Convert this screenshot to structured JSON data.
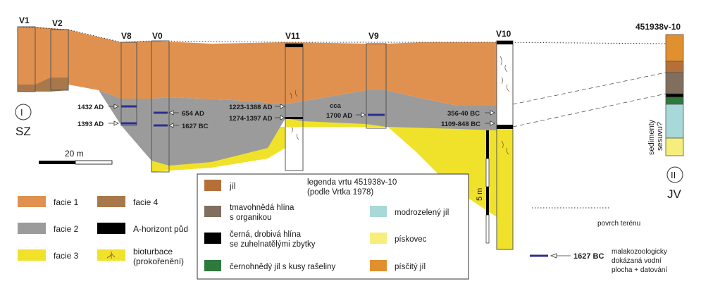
{
  "colors": {
    "facie1": "#e0914f",
    "facie2": "#9b9b9b",
    "facie3": "#f0e22a",
    "facie4": "#a9784a",
    "ahorizon": "#000000",
    "jil": "#b5703a",
    "tmavohneda": "#806e5e",
    "cernohneda": "#2e7a3c",
    "modrozeleny": "#a9d8d8",
    "piskovec": "#f5ee7c",
    "piscity": "#e0902e",
    "mollusc_line": "#2d2f8c"
  },
  "boreholes": {
    "v1": "V1",
    "v2": "V2",
    "v8": "V8",
    "v0": "V0",
    "v11": "V11",
    "v9": "V9",
    "v10": "V10",
    "ref": "451938v-10"
  },
  "dates": {
    "v8_upper": "1432 AD",
    "v8_lower": "1393 AD",
    "v0_upper": "654 AD",
    "v0_lower": "1627 BC",
    "v11_upper": "1223-1388 AD",
    "v11_lower": "1274-1397 AD",
    "v9_line1": "cca",
    "v9_line2": "1700 AD",
    "v10_upper": "356-40 BC",
    "v10_lower": "1109-848 BC"
  },
  "profile": {
    "point_left_symbol": "I",
    "point_left_dir": "SZ",
    "point_right_symbol": "II",
    "point_right_dir": "JV",
    "scale_h": "20 m",
    "scale_v": "5 m",
    "slide_label_1": "sedimenty",
    "slide_label_2": "sesuvu?"
  },
  "legend_facies": {
    "f1": "facie 1",
    "f2": "facie 2",
    "f3": "facie 3",
    "f4": "facie 4",
    "ah": "A-horizont půd",
    "bio1": "bioturbace",
    "bio2": "(prokořenění)"
  },
  "legend_box": {
    "title1": "legenda vrtu 451938v-10",
    "title2": "(podle Vrtka 1978)",
    "jil": "jíl",
    "tmav1": "tmavohnědá hlína",
    "tmav2": "s organikou",
    "cerna1": "černá, drobivá hlína",
    "cerna2": "se zuhelnatělými zbytky",
    "cernohneda": "černohnědý jíl s kusy rašeliny",
    "modro": "modrozelený jíl",
    "piskovec": "pískovec",
    "piscity": "písčitý jíl"
  },
  "legend_right": {
    "surface": "povrch terénu",
    "example_date": "1627 BC",
    "mollusc1": "malakozoologicky",
    "mollusc2": "dokázaná vodní",
    "mollusc3": "plocha + datování"
  }
}
